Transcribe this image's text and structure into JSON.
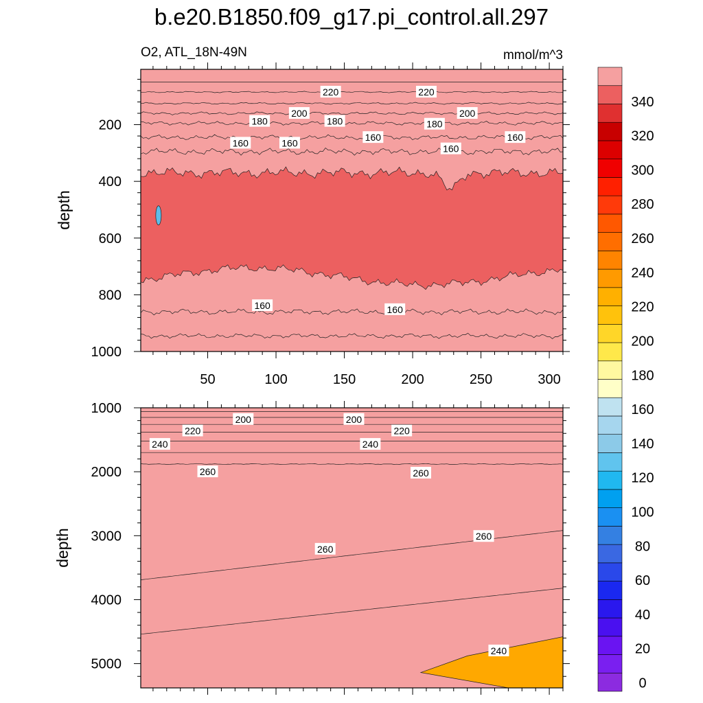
{
  "title": "b.e20.B1850.f09_g17.pi_control.all.297",
  "chart_data": {
    "type": "heatmap",
    "variable": "O2, ATL_18N-49N",
    "units": "mmol/m^3",
    "colorbar": {
      "tick_labels": [
        "0",
        "20",
        "40",
        "60",
        "80",
        "100",
        "120",
        "140",
        "160",
        "180",
        "200",
        "220",
        "240",
        "260",
        "280",
        "300",
        "320",
        "340"
      ],
      "levels": [
        -5,
        0,
        5,
        10,
        15,
        20,
        25,
        30,
        35,
        40,
        45,
        50,
        55,
        60,
        65,
        70,
        75,
        80,
        85,
        90,
        95,
        100,
        105,
        110,
        115,
        120,
        125,
        130,
        135,
        140,
        145,
        150,
        155,
        160,
        165,
        170,
        175,
        180,
        185,
        190,
        195,
        200,
        205,
        210,
        215,
        220,
        225,
        230,
        235,
        240,
        245,
        250,
        255,
        260,
        265,
        270,
        275,
        280,
        285,
        290,
        295,
        300,
        305,
        310,
        315,
        320,
        325,
        330,
        335,
        340,
        345,
        350,
        355,
        360
      ],
      "colors": [
        "#8c2be0",
        "#7a1ff0",
        "#6a14f2",
        "#4a10f0",
        "#2a18ee",
        "#1a28f0",
        "#2a48ea",
        "#3a68e2",
        "#3480e2",
        "#1a90f2",
        "#00a0f0",
        "#20b8f0",
        "#60c4ee",
        "#8ccae8",
        "#a6d6ee",
        "#bfe2f0",
        "#ffffc8",
        "#fff8a0",
        "#ffe84a",
        "#ffd628",
        "#ffc20c",
        "#ffb000",
        "#ff9a00",
        "#ff8400",
        "#ff6e00",
        "#ff5800",
        "#ff3a0a",
        "#ff2000",
        "#f00000",
        "#dc0000",
        "#c80000",
        "#e03030",
        "#ec6060",
        "#f5a0a0"
      ]
    },
    "panels": [
      {
        "name": "upper",
        "xlabel": "",
        "ylabel": "depth",
        "xlim": [
          1,
          310
        ],
        "ylim": [
          1000,
          5
        ],
        "xticks": [
          "50",
          "100",
          "150",
          "200",
          "250",
          "300"
        ],
        "yticks": [
          "200",
          "400",
          "600",
          "800",
          "1000"
        ],
        "contour_labels": [
          {
            "text": "220",
            "x": 140,
            "y": 85
          },
          {
            "text": "220",
            "x": 210,
            "y": 85
          },
          {
            "text": "200",
            "x": 117,
            "y": 160
          },
          {
            "text": "200",
            "x": 240,
            "y": 160
          },
          {
            "text": "180",
            "x": 88,
            "y": 188
          },
          {
            "text": "180",
            "x": 143,
            "y": 188
          },
          {
            "text": "180",
            "x": 216,
            "y": 198
          },
          {
            "text": "160",
            "x": 74,
            "y": 265
          },
          {
            "text": "160",
            "x": 110,
            "y": 265
          },
          {
            "text": "160",
            "x": 171,
            "y": 245
          },
          {
            "text": "160",
            "x": 228,
            "y": 285
          },
          {
            "text": "160",
            "x": 275,
            "y": 245
          },
          {
            "text": "160",
            "x": 90,
            "y": 838
          },
          {
            "text": "160",
            "x": 187,
            "y": 852
          }
        ]
      },
      {
        "name": "lower",
        "xlabel": "",
        "ylabel": "depth",
        "xlim": [
          1,
          310
        ],
        "ylim": [
          5380,
          1000
        ],
        "xticks": [],
        "yticks": [
          "1000",
          "2000",
          "3000",
          "4000",
          "5000"
        ],
        "contour_labels": [
          {
            "text": "200",
            "x": 76,
            "y": 1180
          },
          {
            "text": "200",
            "x": 157,
            "y": 1180
          },
          {
            "text": "220",
            "x": 39,
            "y": 1360
          },
          {
            "text": "220",
            "x": 192,
            "y": 1360
          },
          {
            "text": "240",
            "x": 15,
            "y": 1570
          },
          {
            "text": "240",
            "x": 169,
            "y": 1570
          },
          {
            "text": "260",
            "x": 50,
            "y": 2000
          },
          {
            "text": "260",
            "x": 206,
            "y": 2020
          },
          {
            "text": "260",
            "x": 136,
            "y": 3210
          },
          {
            "text": "260",
            "x": 252,
            "y": 3010
          },
          {
            "text": "240",
            "x": 263,
            "y": 4800
          }
        ]
      }
    ]
  }
}
